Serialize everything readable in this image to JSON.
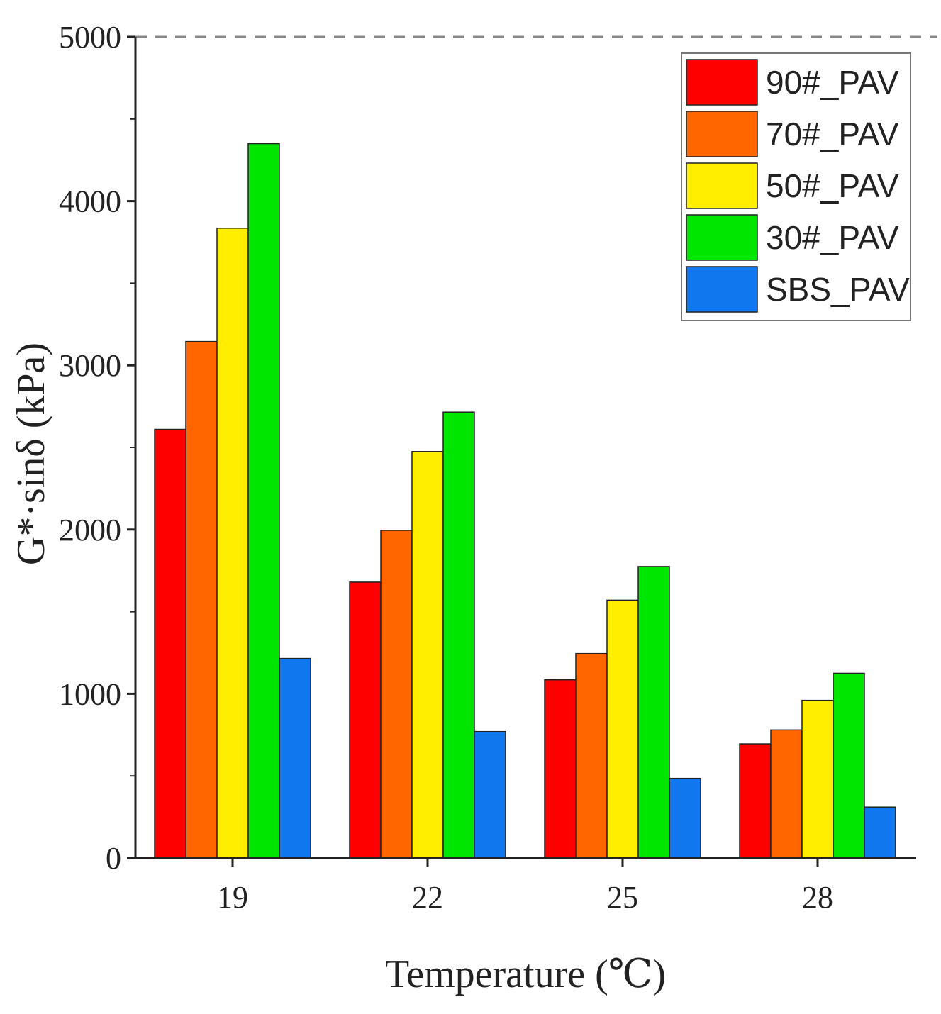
{
  "chart_data": {
    "type": "bar",
    "title": "",
    "xlabel": "Temperature (℃)",
    "ylabel": "G*·sinδ (kPa)",
    "categories": [
      "19",
      "22",
      "25",
      "28"
    ],
    "ylim": [
      0,
      5000
    ],
    "yticks": [
      "0",
      "1000",
      "2000",
      "3000",
      "4000",
      "5000"
    ],
    "reference_line": {
      "value": 5000,
      "style": "dashed"
    },
    "legend_position": "top-right",
    "series": [
      {
        "name": "90#_PAV",
        "color": "#ff0000",
        "values": [
          2610,
          1680,
          1085,
          695
        ]
      },
      {
        "name": "70#_PAV",
        "color": "#ff6600",
        "values": [
          3145,
          1995,
          1245,
          780
        ]
      },
      {
        "name": "50#_PAV",
        "color": "#ffee00",
        "values": [
          3835,
          2475,
          1570,
          960
        ]
      },
      {
        "name": "30#_PAV",
        "color": "#00e600",
        "values": [
          4350,
          2715,
          1775,
          1125
        ]
      },
      {
        "name": "SBS_PAV",
        "color": "#1177ee",
        "values": [
          1215,
          770,
          485,
          310
        ]
      }
    ]
  }
}
